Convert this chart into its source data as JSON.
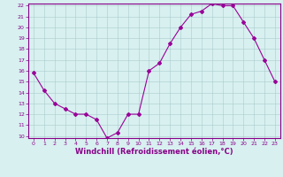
{
  "x": [
    0,
    1,
    2,
    3,
    4,
    5,
    6,
    7,
    8,
    9,
    10,
    11,
    12,
    13,
    14,
    15,
    16,
    17,
    18,
    19,
    20,
    21,
    22,
    23
  ],
  "y": [
    15.8,
    14.2,
    13.0,
    12.5,
    12.0,
    12.0,
    11.5,
    9.8,
    10.3,
    12.0,
    12.0,
    16.0,
    16.7,
    18.5,
    20.0,
    21.2,
    21.5,
    22.2,
    22.0,
    22.0,
    20.5,
    19.0,
    17.0,
    15.0
  ],
  "line_color": "#990099",
  "marker": "D",
  "marker_size": 2,
  "bg_color": "#d8f0f0",
  "grid_color": "#aacccc",
  "xlabel": "Windchill (Refroidissement éolien,°C)",
  "xlabel_color": "#880088",
  "ylim": [
    10,
    22
  ],
  "xlim": [
    -0.5,
    23.5
  ],
  "yticks": [
    10,
    11,
    12,
    13,
    14,
    15,
    16,
    17,
    18,
    19,
    20,
    21,
    22
  ],
  "xticks": [
    0,
    1,
    2,
    3,
    4,
    5,
    6,
    7,
    8,
    9,
    10,
    11,
    12,
    13,
    14,
    15,
    16,
    17,
    18,
    19,
    20,
    21,
    22,
    23
  ],
  "tick_color": "#880088",
  "spine_color": "#880088",
  "tick_fontsize": 4.5,
  "xlabel_fontsize": 6.0,
  "linewidth": 0.8
}
